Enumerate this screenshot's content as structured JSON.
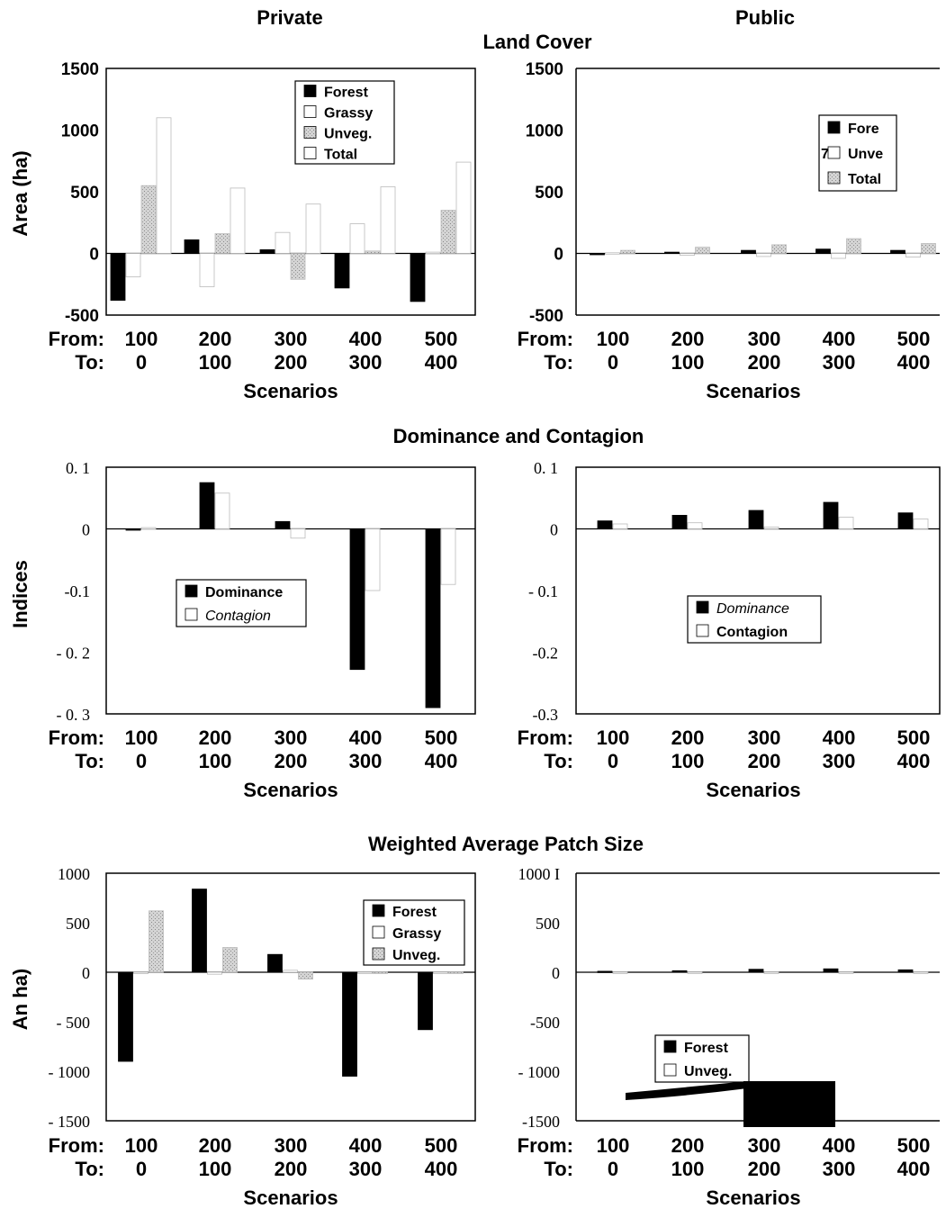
{
  "headers": {
    "private": "Private",
    "public": "Public",
    "sec_land": "Land Cover",
    "sec_dom": "Dominance and Contagion",
    "sec_wps": "Weighted Average Patch Size"
  },
  "ylabels": {
    "land": "Area (ha)",
    "dom": "Indices",
    "wps": "An ha)"
  },
  "xaxis": {
    "from_label": "From:",
    "to_label": "To:",
    "from": [
      "100",
      "200",
      "300",
      "400",
      "500"
    ],
    "to": [
      "0",
      "100",
      "200",
      "300",
      "400"
    ],
    "title": "Scenarios"
  },
  "colors": {
    "forest": "#000000",
    "grassy": "#ffffff",
    "unveg": "#c8c8c8",
    "total": "#ffffff"
  },
  "chart_data": [
    {
      "id": "land_private",
      "type": "bar",
      "categories": [
        "100 → 0",
        "200 → 100",
        "300 → 200",
        "400 → 300",
        "500 → 400"
      ],
      "ylim": [
        -500,
        1500
      ],
      "yticks": [
        "-500",
        "0",
        "500",
        "1000",
        "1500"
      ],
      "series": [
        {
          "name": "Forest",
          "key": "forest",
          "values": [
            -380,
            110,
            30,
            -280,
            -390
          ]
        },
        {
          "name": "Grassy",
          "key": "grassy",
          "values": [
            -190,
            -270,
            170,
            240,
            10
          ]
        },
        {
          "name": "Unveg.",
          "key": "unveg",
          "values": [
            550,
            160,
            -210,
            20,
            350
          ]
        },
        {
          "name": "Total",
          "key": "total",
          "values": [
            1100,
            530,
            400,
            540,
            740
          ]
        }
      ],
      "legend": [
        "Forest",
        "Grassy",
        "Unveg.",
        "Total"
      ]
    },
    {
      "id": "land_public",
      "type": "bar",
      "categories": [
        "100 → 0",
        "200 → 100",
        "300 → 200",
        "400 → 300",
        "500 → 400"
      ],
      "ylim": [
        -500,
        1500
      ],
      "yticks": [
        "-500",
        "0",
        "500",
        "1000",
        "1500"
      ],
      "series": [
        {
          "name": "Forest",
          "key": "forest",
          "values": [
            -5,
            10,
            25,
            35,
            25
          ]
        },
        {
          "name": "Unveg.",
          "key": "grassy",
          "values": [
            5,
            -15,
            -25,
            -40,
            -30
          ]
        },
        {
          "name": "Total",
          "key": "unveg",
          "values": [
            25,
            50,
            70,
            120,
            80
          ]
        }
      ],
      "legend": [
        "Fore",
        "Unve",
        "Total"
      ],
      "legend_glyph": "7"
    },
    {
      "id": "dom_private",
      "type": "bar",
      "categories": [
        "100 → 0",
        "200 → 100",
        "300 → 200",
        "400 → 300",
        "500 → 400"
      ],
      "ylim": [
        -0.3,
        0.1
      ],
      "yticks": [
        "- 0. 3",
        "- 0. 2",
        "-0.1",
        "0",
        "0. 1"
      ],
      "series": [
        {
          "name": "Dominance",
          "key": "forest",
          "values": [
            -0.002,
            0.075,
            0.012,
            -0.228,
            -0.29
          ]
        },
        {
          "name": "Contagion",
          "key": "grassy",
          "values": [
            0.002,
            0.058,
            -0.015,
            -0.1,
            -0.09
          ]
        }
      ],
      "legend": [
        "Dominance",
        "Contagion"
      ]
    },
    {
      "id": "dom_public",
      "type": "bar",
      "categories": [
        "100 → 0",
        "200 → 100",
        "300 → 200",
        "400 → 300",
        "500 → 400"
      ],
      "ylim": [
        -0.3,
        0.1
      ],
      "yticks": [
        "-0.3",
        "-0.2",
        "- 0.1",
        "0",
        "0. 1"
      ],
      "series": [
        {
          "name": "Dominance",
          "key": "forest",
          "values": [
            0.013,
            0.022,
            0.03,
            0.043,
            0.026
          ]
        },
        {
          "name": "Contagion",
          "key": "grassy",
          "values": [
            0.008,
            0.01,
            0.003,
            0.019,
            0.016
          ]
        }
      ],
      "legend": [
        "Dominance",
        "Contagion"
      ]
    },
    {
      "id": "wps_private",
      "type": "bar",
      "categories": [
        "100 → 0",
        "200 → 100",
        "300 → 200",
        "400 → 300",
        "500 → 400"
      ],
      "ylim": [
        -1500,
        1000
      ],
      "yticks": [
        "- 1500",
        "- 1000",
        "- 500",
        "0",
        "500",
        "1000"
      ],
      "series": [
        {
          "name": "Forest",
          "key": "forest",
          "values": [
            -900,
            840,
            180,
            -1050,
            -580
          ]
        },
        {
          "name": "Grassy",
          "key": "grassy",
          "values": [
            0,
            -20,
            20,
            0,
            0
          ]
        },
        {
          "name": "Unveg.",
          "key": "unveg",
          "values": [
            620,
            250,
            -70,
            0,
            0
          ]
        }
      ],
      "legend": [
        "Forest",
        "Grassy",
        "Unveg."
      ]
    },
    {
      "id": "wps_public",
      "type": "bar",
      "categories": [
        "100 → 0",
        "200 → 100",
        "300 → 200",
        "400 → 300",
        "500 → 400"
      ],
      "ylim": [
        -1500,
        1000
      ],
      "yticks": [
        "-1500",
        "- 1000",
        "-500",
        "0",
        "500",
        "1000  I"
      ],
      "series": [
        {
          "name": "Forest",
          "key": "forest",
          "values": [
            10,
            15,
            30,
            35,
            25
          ]
        },
        {
          "name": "Unveg.",
          "key": "grassy",
          "values": [
            0,
            -5,
            -5,
            -10,
            0
          ]
        }
      ],
      "legend": [
        "Forest",
        "Unveg."
      ]
    }
  ]
}
